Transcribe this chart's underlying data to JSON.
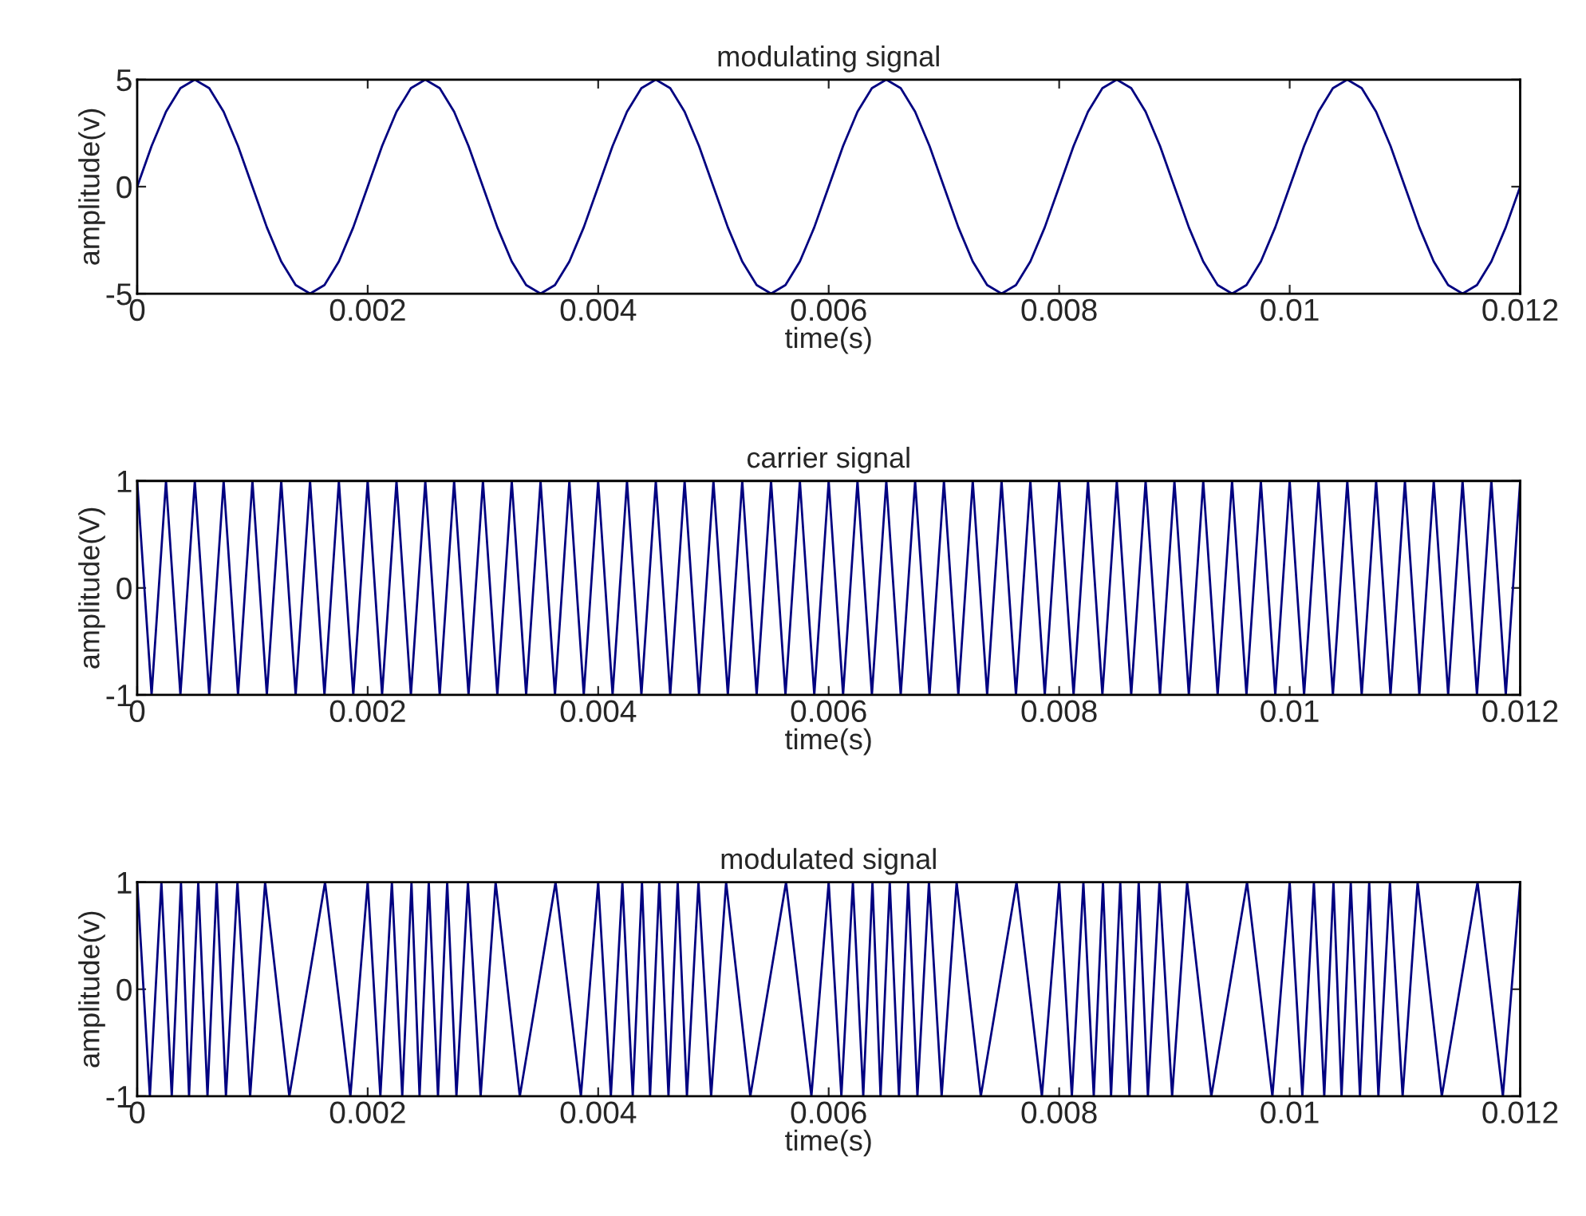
{
  "chart_data": [
    {
      "type": "line",
      "title": "modulating signal",
      "xlabel": "time(s)",
      "ylabel": "amplitude(v)",
      "xlim": [
        0,
        0.012
      ],
      "xticks": [
        0,
        0.002,
        0.004,
        0.006,
        0.008,
        0.01,
        0.012
      ],
      "ylim": [
        -5,
        5
      ],
      "yticks": [
        -5,
        0,
        5
      ],
      "x": [
        0,
        0.000125,
        0.00025,
        0.000375,
        0.0005,
        0.000625,
        0.00075,
        0.000875,
        0.001,
        0.001125,
        0.00125,
        0.001375,
        0.0015,
        0.001625,
        0.00175,
        0.001875,
        0.002,
        0.002125,
        0.00225,
        0.002375,
        0.0025,
        0.002625,
        0.00275,
        0.002875,
        0.003,
        0.003125,
        0.00325,
        0.003375,
        0.0035,
        0.003625,
        0.00375,
        0.003875,
        0.004,
        0.004125,
        0.00425,
        0.004375,
        0.0045,
        0.004625,
        0.00475,
        0.004875,
        0.005,
        0.005125,
        0.00525,
        0.005375,
        0.0055,
        0.005625,
        0.00575,
        0.005875,
        0.006,
        0.006125,
        0.00625,
        0.006375,
        0.0065,
        0.006625,
        0.00675,
        0.006875,
        0.007,
        0.007125,
        0.00725,
        0.007375,
        0.0075,
        0.007625,
        0.00775,
        0.007875,
        0.008,
        0.008125,
        0.00825,
        0.008375,
        0.0085,
        0.008625,
        0.00875,
        0.008875,
        0.009,
        0.009125,
        0.00925,
        0.009375,
        0.0095,
        0.009625,
        0.00975,
        0.009875,
        0.01,
        0.010125,
        0.01025,
        0.010375,
        0.0105,
        0.010625,
        0.01075,
        0.010875,
        0.011,
        0.011125,
        0.01125,
        0.011375,
        0.0115,
        0.011625,
        0.01175,
        0.011875,
        0.012
      ],
      "series": [
        {
          "color": "#000080",
          "values": [
            0,
            1.9,
            3.5,
            4.6,
            5,
            4.6,
            3.5,
            1.9,
            0,
            -1.9,
            -3.5,
            -4.6,
            -5,
            -4.6,
            -3.5,
            -1.9,
            0,
            1.9,
            3.5,
            4.6,
            5,
            4.6,
            3.5,
            1.9,
            0,
            -1.9,
            -3.5,
            -4.6,
            -5,
            -4.6,
            -3.5,
            -1.9,
            0,
            1.9,
            3.5,
            4.6,
            5,
            4.6,
            3.5,
            1.9,
            0,
            -1.9,
            -3.5,
            -4.6,
            -5,
            -4.6,
            -3.5,
            -1.9,
            0,
            1.9,
            3.5,
            4.6,
            5,
            4.6,
            3.5,
            1.9,
            0,
            -1.9,
            -3.5,
            -4.6,
            -5,
            -4.6,
            -3.5,
            -1.9,
            0,
            1.9,
            3.5,
            4.6,
            5,
            4.6,
            3.5,
            1.9,
            0,
            -1.9,
            -3.5,
            -4.6,
            -5,
            -4.6,
            -3.5,
            -1.9,
            0,
            1.9,
            3.5,
            4.6,
            5,
            4.6,
            3.5,
            1.9,
            0,
            -1.9,
            -3.5,
            -4.6,
            -5,
            -4.6,
            -3.5,
            -1.9,
            0
          ]
        }
      ]
    },
    {
      "type": "line",
      "title": "carrier signal",
      "xlabel": "time(s)",
      "ylabel": "amplitude(V)",
      "xlim": [
        0,
        0.012
      ],
      "xticks": [
        0,
        0.002,
        0.004,
        0.006,
        0.008,
        0.01,
        0.012
      ],
      "ylim": [
        -1,
        1
      ],
      "yticks": [
        -1,
        0,
        1
      ],
      "x": [
        0,
        0.000125,
        0.00025,
        0.000375,
        0.0005,
        0.000625,
        0.00075,
        0.000875,
        0.001,
        0.001125,
        0.00125,
        0.001375,
        0.0015,
        0.001625,
        0.00175,
        0.001875,
        0.002,
        0.002125,
        0.00225,
        0.002375,
        0.0025,
        0.002625,
        0.00275,
        0.002875,
        0.003,
        0.003125,
        0.00325,
        0.003375,
        0.0035,
        0.003625,
        0.00375,
        0.003875,
        0.004,
        0.004125,
        0.00425,
        0.004375,
        0.0045,
        0.004625,
        0.00475,
        0.004875,
        0.005,
        0.005125,
        0.00525,
        0.005375,
        0.0055,
        0.005625,
        0.00575,
        0.005875,
        0.006,
        0.006125,
        0.00625,
        0.006375,
        0.0065,
        0.006625,
        0.00675,
        0.006875,
        0.007,
        0.007125,
        0.00725,
        0.007375,
        0.0075,
        0.007625,
        0.00775,
        0.007875,
        0.008,
        0.008125,
        0.00825,
        0.008375,
        0.0085,
        0.008625,
        0.00875,
        0.008875,
        0.009,
        0.009125,
        0.00925,
        0.009375,
        0.0095,
        0.009625,
        0.00975,
        0.009875,
        0.01,
        0.010125,
        0.01025,
        0.010375,
        0.0105,
        0.010625,
        0.01075,
        0.010875,
        0.011,
        0.011125,
        0.01125,
        0.011375,
        0.0115,
        0.011625,
        0.01175,
        0.011875,
        0.012
      ],
      "series": [
        {
          "color": "#000080",
          "values": [
            1,
            -1,
            1,
            -1,
            1,
            -1,
            1,
            -1,
            1,
            -1,
            1,
            -1,
            1,
            -1,
            1,
            -1,
            1,
            -1,
            1,
            -1,
            1,
            -1,
            1,
            -1,
            1,
            -1,
            1,
            -1,
            1,
            -1,
            1,
            -1,
            1,
            -1,
            1,
            -1,
            1,
            -1,
            1,
            -1,
            1,
            -1,
            1,
            -1,
            1,
            -1,
            1,
            -1,
            1,
            -1,
            1,
            -1,
            1,
            -1,
            1,
            -1,
            1,
            -1,
            1,
            -1,
            1,
            -1,
            1,
            -1,
            1,
            -1,
            1,
            -1,
            1,
            -1,
            1,
            -1,
            1,
            -1,
            1,
            -1,
            1,
            -1,
            1,
            -1,
            1,
            -1,
            1,
            -1,
            1,
            -1,
            1,
            -1,
            1,
            -1,
            1,
            -1,
            1,
            -1,
            1,
            -1,
            1
          ]
        }
      ]
    },
    {
      "type": "line",
      "title": "modulated signal",
      "xlabel": "time(s)",
      "ylabel": "amplitude(v)",
      "xlim": [
        0,
        0.012
      ],
      "xticks": [
        0,
        0.002,
        0.004,
        0.006,
        0.008,
        0.01,
        0.012
      ],
      "ylim": [
        -1,
        1
      ],
      "yticks": [
        -1,
        0,
        1
      ],
      "x": [
        0,
        0.00011,
        0.00021,
        0.0003,
        0.00038,
        0.00045,
        0.00053,
        0.00061,
        0.00069,
        0.00077,
        0.00087,
        0.00098,
        0.00111,
        0.00132,
        0.00163,
        0.00185,
        0.002,
        0.00211,
        0.00221,
        0.0023,
        0.00238,
        0.00245,
        0.00253,
        0.00261,
        0.00269,
        0.00277,
        0.00287,
        0.00298,
        0.00311,
        0.00332,
        0.00363,
        0.00385,
        0.004,
        0.00411,
        0.00421,
        0.0043,
        0.00438,
        0.00445,
        0.00453,
        0.00461,
        0.00469,
        0.00477,
        0.00487,
        0.00498,
        0.00511,
        0.00532,
        0.00563,
        0.00585,
        0.006,
        0.00611,
        0.00621,
        0.0063,
        0.00638,
        0.00645,
        0.00653,
        0.00661,
        0.00669,
        0.00677,
        0.00687,
        0.00698,
        0.00711,
        0.00732,
        0.00763,
        0.00785,
        0.008,
        0.00811,
        0.00821,
        0.0083,
        0.00838,
        0.00845,
        0.00853,
        0.00861,
        0.00869,
        0.00877,
        0.00887,
        0.00898,
        0.00911,
        0.00932,
        0.00963,
        0.00985,
        0.01,
        0.01011,
        0.01021,
        0.0103,
        0.01038,
        0.01045,
        0.01053,
        0.01061,
        0.01069,
        0.01077,
        0.01087,
        0.01098,
        0.01111,
        0.01132,
        0.01163,
        0.01185,
        0.012
      ],
      "series": [
        {
          "color": "#000080",
          "values": [
            1,
            -1,
            1,
            -1,
            1,
            -1,
            1,
            -1,
            1,
            -1,
            1,
            -1,
            1,
            -1,
            1,
            -1,
            1,
            -1,
            1,
            -1,
            1,
            -1,
            1,
            -1,
            1,
            -1,
            1,
            -1,
            1,
            -1,
            1,
            -1,
            1,
            -1,
            1,
            -1,
            1,
            -1,
            1,
            -1,
            1,
            -1,
            1,
            -1,
            1,
            -1,
            1,
            -1,
            1,
            -1,
            1,
            -1,
            1,
            -1,
            1,
            -1,
            1,
            -1,
            1,
            -1,
            1,
            -1,
            1,
            -1,
            1,
            -1,
            1,
            -1,
            1,
            -1,
            1,
            -1,
            1,
            -1,
            1,
            -1,
            1,
            -1,
            1,
            -1,
            1,
            -1,
            1,
            -1,
            1,
            -1,
            1,
            -1,
            1,
            -1,
            1,
            -1,
            1,
            -1,
            1,
            -1,
            1
          ]
        }
      ]
    }
  ]
}
